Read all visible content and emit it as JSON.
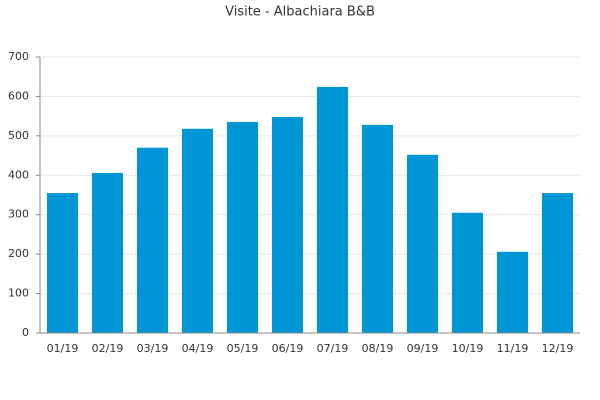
{
  "chart_data": {
    "type": "bar",
    "title": "Visite - Albachiara B&B",
    "categories": [
      "01/19",
      "02/19",
      "03/19",
      "04/19",
      "05/19",
      "06/19",
      "07/19",
      "08/19",
      "09/19",
      "10/19",
      "11/19",
      "12/19"
    ],
    "values": [
      355,
      406,
      470,
      518,
      535,
      548,
      624,
      528,
      452,
      305,
      206,
      355
    ],
    "color": "#0096d6",
    "ylim": [
      0,
      700
    ],
    "yticks": [
      0,
      100,
      200,
      300,
      400,
      500,
      600,
      700
    ],
    "grid": true
  }
}
